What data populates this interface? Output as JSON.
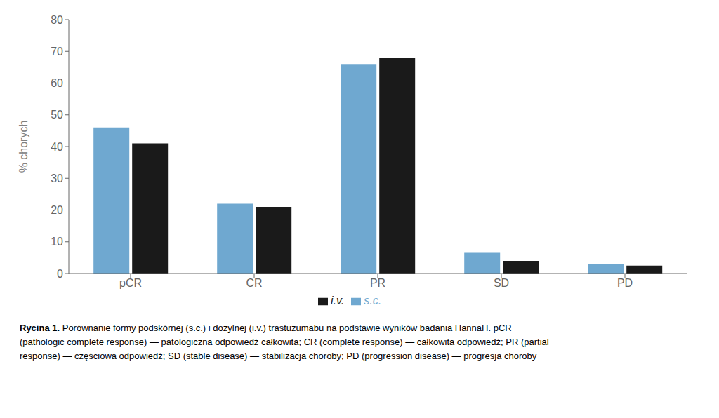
{
  "chart_data": {
    "type": "bar",
    "categories": [
      "pCR",
      "CR",
      "PR",
      "SD",
      "PD"
    ],
    "series": [
      {
        "name": "s.c.",
        "color": "#6fa8d0",
        "values": [
          46,
          22,
          66,
          6.5,
          3
        ]
      },
      {
        "name": "i.v.",
        "color": "#1a1a1a",
        "values": [
          41,
          21,
          68,
          4,
          2.5
        ]
      }
    ],
    "ylabel": "% chorych",
    "ylim": [
      0,
      80
    ],
    "yticks": [
      0,
      10,
      20,
      30,
      40,
      50,
      60,
      70,
      80
    ],
    "grid": false,
    "legend": "bottom",
    "annotations": [
      "Rycina 1.",
      "Porównanie formy podskórnej (s.c.) i dożylnej (i.v.) trastuzumabu na podstawie wyników badania HannaH. pCR",
      "(pathologic complete response) — patologiczna odpowiedź całkowita; CR (complete response) — całkowita odpowiedź; PR (partial",
      "response) — częściowa odpowiedź; SD (stable disease) — stabilizacja choroby; PD (progression disease) — progresja choroby"
    ]
  }
}
